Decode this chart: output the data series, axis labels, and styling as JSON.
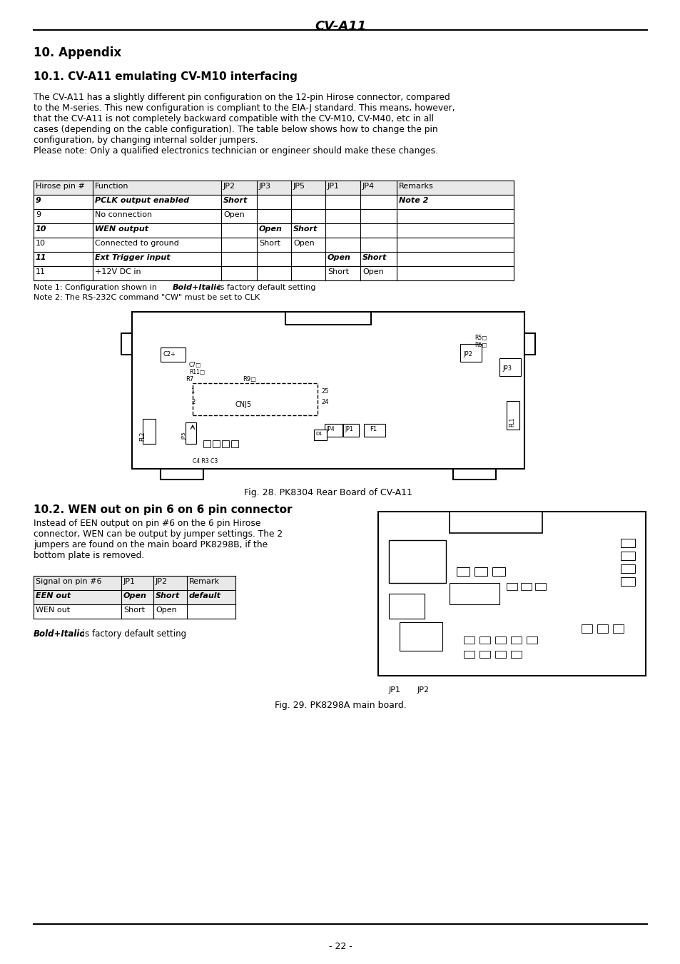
{
  "page_title": "CV-A11",
  "section1_title": "10. Appendix",
  "section2_title": "10.1. CV-A11 emulating CV-M10 interfacing",
  "para1": "The CV-A11 has a slightly different pin configuration on the 12-pin Hirose connector, compared\nto the M-series. This new configuration is compliant to the EIA-J standard. This means, however,\nthat the CV-A11 is not completely backward compatible with the CV-M10, CV-M40, etc in all\ncases (depending on the cable configuration). The table below shows how to change the pin\nconfiguration, by changing internal solder jumpers.\nPlease note: Only a qualified electronics technician or engineer should make these changes.",
  "table1_headers": [
    "Hirose pin #",
    "Function",
    "JP2",
    "JP3",
    "JP5",
    "JP1",
    "JP4",
    "Remarks"
  ],
  "table1_rows": [
    [
      "9",
      "PCLK output enabled",
      "Short",
      "",
      "",
      "",
      "",
      "Note 2"
    ],
    [
      "9",
      "No connection",
      "Open",
      "",
      "",
      "",
      "",
      ""
    ],
    [
      "10",
      "WEN output",
      "",
      "Open",
      "Short",
      "",
      "",
      ""
    ],
    [
      "10",
      "Connected to ground",
      "",
      "Short",
      "Open",
      "",
      "",
      ""
    ],
    [
      "11",
      "Ext Trigger input",
      "",
      "",
      "",
      "Open",
      "Short",
      ""
    ],
    [
      "11",
      "+12V DC in",
      "",
      "",
      "",
      "Short",
      "Open",
      ""
    ]
  ],
  "table1_bold_rows": [
    0,
    2,
    4
  ],
  "table1_note1": "Note 1: Configuration shown in Bold+Italic is factory default setting",
  "table1_note2": "Note 2: The RS-232C command \"CW\" must be set to CLK",
  "fig28_caption": "Fig. 28. PK8304 Rear Board of CV-A11",
  "section3_title": "10.2. WEN out on pin 6 on 6 pin connector",
  "para2": "Instead of EEN output on pin #6 on the 6 pin Hirose\nconnector, WEN can be output by jumper settings. The 2\njumpers are found on the main board PK8298B, if the\nbottom plate is removed.",
  "table2_headers": [
    "Signal on pin #6",
    "JP1",
    "JP2",
    "Remark"
  ],
  "table2_rows": [
    [
      "EEN out",
      "Open",
      "Short",
      "default"
    ],
    [
      "WEN out",
      "Short",
      "Open",
      ""
    ]
  ],
  "table2_bold_rows": [
    0
  ],
  "bold_italic_note": "Bold+Italic is factory default setting",
  "fig29_caption": "Fig. 29. PK8298A main board.",
  "page_number": "- 22 -",
  "bg_color": "#ffffff",
  "text_color": "#000000",
  "border_color": "#000000"
}
